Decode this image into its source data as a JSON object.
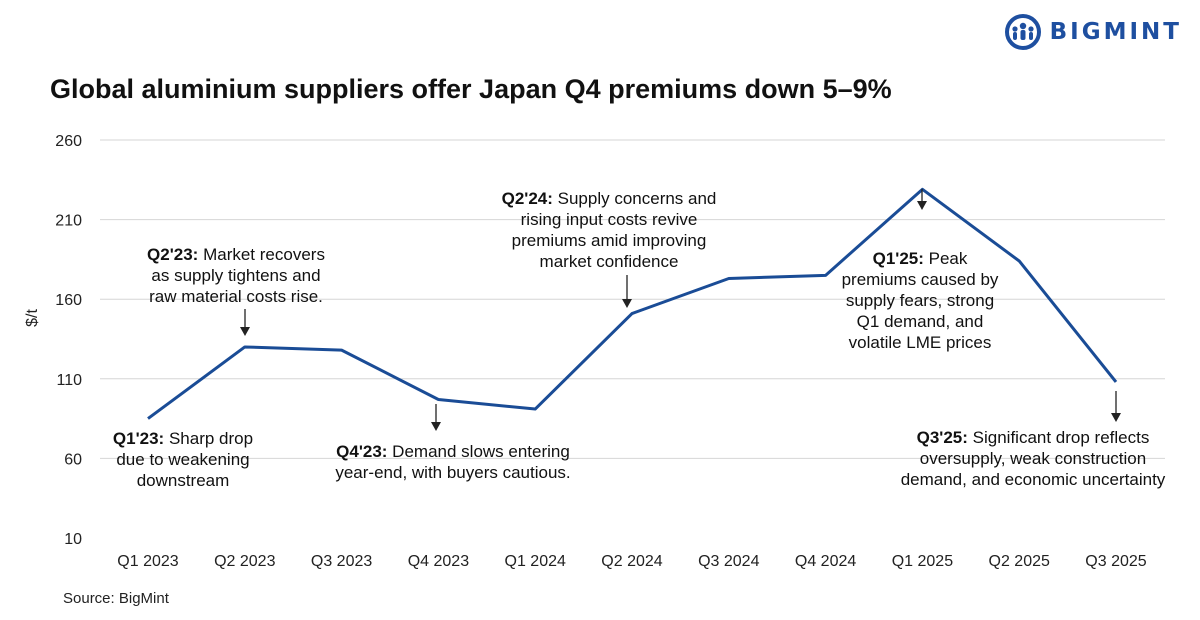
{
  "brand": {
    "name": "BIGMINT",
    "color": "#1e4fa0"
  },
  "title": "Global aluminium suppliers offer Japan Q4 premiums down 5–9%",
  "source": "Source: BigMint",
  "chart_data": {
    "type": "line",
    "categories": [
      "Q1 2023",
      "Q2 2023",
      "Q3 2023",
      "Q4 2023",
      "Q1 2024",
      "Q2 2024",
      "Q3 2024",
      "Q4 2024",
      "Q1 2025",
      "Q2 2025",
      "Q3 2025"
    ],
    "series": [
      {
        "values": [
          85,
          130,
          128,
          97,
          91,
          151,
          173,
          175,
          229,
          184,
          108
        ],
        "color": "#1a4c96"
      }
    ],
    "ylabel": "$/t",
    "xlabel": "",
    "ylim": [
      10,
      260
    ],
    "yticks": [
      10,
      60,
      110,
      160,
      210,
      260
    ],
    "grid": true,
    "annotations": [
      {
        "key": "q123",
        "bold": "Q1'23:",
        "lines": [
          " Sharp drop",
          "due to weakening",
          "downstream"
        ]
      },
      {
        "key": "q223",
        "bold": "Q2'23:",
        "lines": [
          " Market recovers",
          "as supply tightens and",
          "raw material costs rise."
        ]
      },
      {
        "key": "q423",
        "bold": "Q4'23:",
        "lines": [
          " Demand slows entering",
          "year-end, with buyers cautious."
        ]
      },
      {
        "key": "q224",
        "bold": "Q2'24:",
        "lines": [
          " Supply concerns and",
          "rising input costs revive",
          "premiums amid improving",
          "market confidence"
        ]
      },
      {
        "key": "q125",
        "bold": "Q1'25:",
        "lines": [
          " Peak",
          "premiums caused by",
          "supply fears, strong",
          "Q1 demand, and",
          "volatile LME prices"
        ]
      },
      {
        "key": "q325",
        "bold": "Q3'25:",
        "lines": [
          " Significant drop reflects",
          "oversupply, weak construction",
          "demand, and economic uncertainty"
        ]
      }
    ]
  }
}
